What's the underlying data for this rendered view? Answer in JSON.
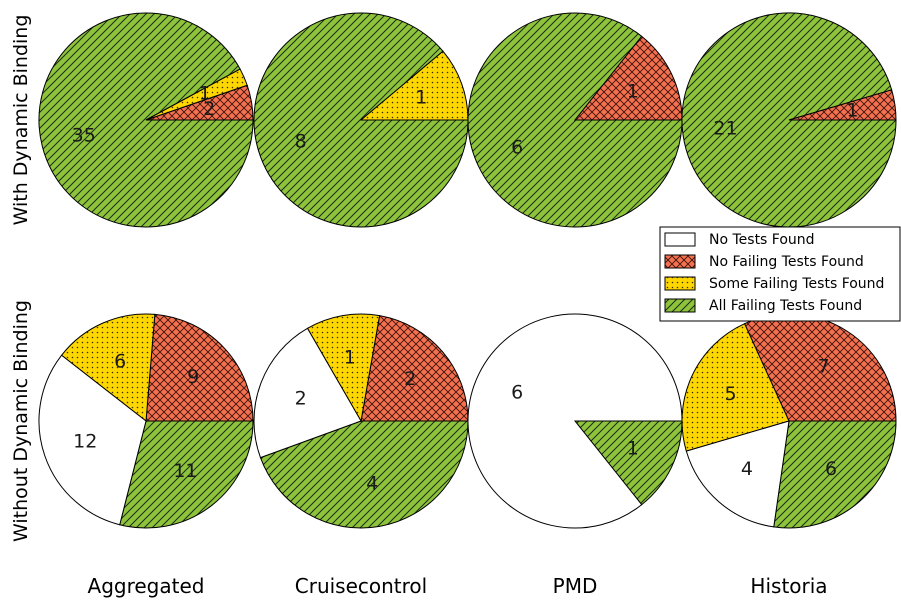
{
  "chart_data": {
    "type": "pie",
    "rows": [
      "With Dynamic Binding",
      "Without Dynamic Binding"
    ],
    "columns": [
      "Aggregated",
      "Cruisecontrol",
      "PMD",
      "Historia"
    ],
    "legend": {
      "placement": "right",
      "entries": [
        {
          "key": "no_tests",
          "name": "No Tests Found",
          "color": "#ffffff",
          "pattern": "none"
        },
        {
          "key": "no_failing",
          "name": "No Failing Tests Found",
          "color": "#f4704f",
          "pattern": "crosshatch"
        },
        {
          "key": "some_failing",
          "name": "Some Failing Tests Found",
          "color": "#ffd700",
          "pattern": "dots"
        },
        {
          "key": "all_failing",
          "name": "All Failing Tests Found",
          "color": "#8dc43c",
          "pattern": "diagonal"
        }
      ]
    },
    "pies": [
      {
        "row": "With Dynamic Binding",
        "column": "Aggregated",
        "values": {
          "all_failing": 35,
          "no_failing": 2,
          "some_failing": 1,
          "no_tests": 0
        }
      },
      {
        "row": "With Dynamic Binding",
        "column": "Cruisecontrol",
        "values": {
          "all_failing": 8,
          "no_failing": 0,
          "some_failing": 1,
          "no_tests": 0
        }
      },
      {
        "row": "With Dynamic Binding",
        "column": "PMD",
        "values": {
          "all_failing": 6,
          "no_failing": 1,
          "some_failing": 0,
          "no_tests": 0
        }
      },
      {
        "row": "With Dynamic Binding",
        "column": "Historia",
        "values": {
          "all_failing": 21,
          "no_failing": 1,
          "some_failing": 0,
          "no_tests": 0
        }
      },
      {
        "row": "Without Dynamic Binding",
        "column": "Aggregated",
        "values": {
          "all_failing": 11,
          "no_failing": 9,
          "some_failing": 6,
          "no_tests": 12
        }
      },
      {
        "row": "Without Dynamic Binding",
        "column": "Cruisecontrol",
        "values": {
          "all_failing": 4,
          "no_failing": 2,
          "some_failing": 1,
          "no_tests": 2
        }
      },
      {
        "row": "Without Dynamic Binding",
        "column": "PMD",
        "values": {
          "all_failing": 1,
          "no_failing": 0,
          "some_failing": 0,
          "no_tests": 6
        }
      },
      {
        "row": "Without Dynamic Binding",
        "column": "Historia",
        "values": {
          "all_failing": 6,
          "no_failing": 7,
          "some_failing": 5,
          "no_tests": 4
        }
      }
    ]
  }
}
